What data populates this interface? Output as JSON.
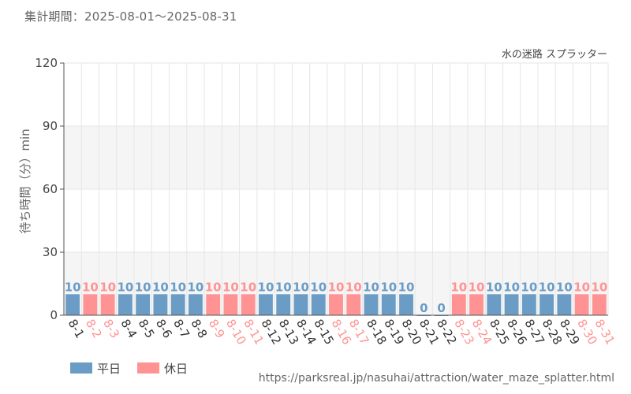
{
  "period_label": "集計期間：2025-08-01～2025-08-31",
  "source_url": "https://parksreal.jp/nasuhai/attraction/water_maze_splatter.html",
  "colors": {
    "weekday": "#6a9cc6",
    "holiday": "#ff9393",
    "grid": "#e6e6e6",
    "band": "#f5f5f5",
    "axis": "#555555"
  },
  "legend": [
    {
      "label": "平日",
      "color": "#6a9cc6"
    },
    {
      "label": "休日",
      "color": "#ff9393"
    }
  ],
  "chart_data": {
    "type": "bar",
    "title": "水の迷路 スプラッター",
    "ylabel": "待ち時間（分）min",
    "xlabel": "",
    "ylim": [
      0,
      120
    ],
    "yticks": [
      0,
      30,
      60,
      90,
      120
    ],
    "grid": true,
    "legend_position": "bottom-left",
    "categories": [
      "8-1",
      "8-2",
      "8-3",
      "8-4",
      "8-5",
      "8-6",
      "8-7",
      "8-8",
      "8-9",
      "8-10",
      "8-11",
      "8-12",
      "8-13",
      "8-14",
      "8-15",
      "8-16",
      "8-17",
      "8-18",
      "8-19",
      "8-20",
      "8-21",
      "8-22",
      "8-23",
      "8-24",
      "8-25",
      "8-26",
      "8-27",
      "8-28",
      "8-29",
      "8-30",
      "8-31"
    ],
    "values": [
      10,
      10,
      10,
      10,
      10,
      10,
      10,
      10,
      10,
      10,
      10,
      10,
      10,
      10,
      10,
      10,
      10,
      10,
      10,
      10,
      0,
      0,
      10,
      10,
      10,
      10,
      10,
      10,
      10,
      10,
      10
    ],
    "day_type": [
      "weekday",
      "holiday",
      "holiday",
      "weekday",
      "weekday",
      "weekday",
      "weekday",
      "weekday",
      "holiday",
      "holiday",
      "holiday",
      "weekday",
      "weekday",
      "weekday",
      "weekday",
      "holiday",
      "holiday",
      "weekday",
      "weekday",
      "weekday",
      "weekday",
      "weekday",
      "holiday",
      "holiday",
      "weekday",
      "weekday",
      "weekday",
      "weekday",
      "weekday",
      "holiday",
      "holiday"
    ]
  }
}
